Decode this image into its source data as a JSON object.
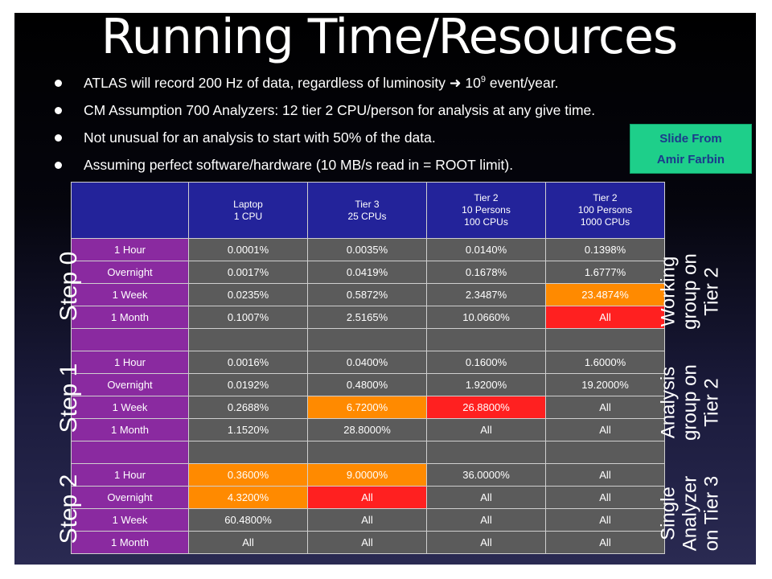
{
  "title": "Running Time/Resources",
  "bullets": [
    {
      "pre": "ATLAS will record 200 Hz of data, regardless of luminosity ",
      "arrow": "➜",
      "base": " 10",
      "sup": "9",
      "post": " event/year."
    },
    {
      "text": "CM Assumption 700 Analyzers: 12 tier 2 CPU/person for analysis at any give time."
    },
    {
      "text": "Not unusual for an analysis to start with 50% of the data."
    },
    {
      "text": "Assuming perfect software/hardware (10 MB/s read in = ROOT limit)."
    }
  ],
  "note": {
    "line1": "Slide From",
    "line2": "Amir Farbin"
  },
  "table": {
    "headers": [
      {
        "lines": [
          "Laptop",
          "1 CPU"
        ]
      },
      {
        "lines": [
          "Tier 3",
          "25 CPUs"
        ]
      },
      {
        "lines": [
          "Tier 2",
          "10 Persons",
          "100 CPUs"
        ]
      },
      {
        "lines": [
          "Tier 2",
          "100 Persons",
          "1000 CPUs"
        ]
      }
    ],
    "rows": [
      [
        "1 Hour",
        "0.0001%",
        "0.0035%",
        "0.0140%",
        "0.1398%"
      ],
      [
        "Overnight",
        "0.0017%",
        "0.0419%",
        "0.1678%",
        "1.6777%"
      ],
      [
        "1 Week",
        "0.0235%",
        "0.5872%",
        "2.3487%",
        "23.4874%"
      ],
      [
        "1 Month",
        "0.1007%",
        "2.5165%",
        "10.0660%",
        "All"
      ],
      [
        "",
        "",
        "",
        "",
        ""
      ],
      [
        "1 Hour",
        "0.0016%",
        "0.0400%",
        "0.1600%",
        "1.6000%"
      ],
      [
        "Overnight",
        "0.0192%",
        "0.4800%",
        "1.9200%",
        "19.2000%"
      ],
      [
        "1 Week",
        "0.2688%",
        "6.7200%",
        "26.8800%",
        "All"
      ],
      [
        "1 Month",
        "1.1520%",
        "28.8000%",
        "All",
        "All"
      ],
      [
        "",
        "",
        "",
        "",
        ""
      ],
      [
        "1 Hour",
        "0.3600%",
        "9.0000%",
        "36.0000%",
        "All"
      ],
      [
        "Overnight",
        "4.3200%",
        "All",
        "All",
        "All"
      ],
      [
        "1 Week",
        "60.4800%",
        "All",
        "All",
        "All"
      ],
      [
        "1 Month",
        "All",
        "All",
        "All",
        "All"
      ]
    ],
    "highlights": {
      "orange": [
        "2-4",
        "7-2",
        "10-1",
        "10-2",
        "11-1"
      ],
      "red": [
        "3-4",
        "7-3",
        "11-2"
      ]
    }
  },
  "steps": [
    "Step 0",
    "Step 1",
    "Step 2"
  ],
  "groups": [
    [
      "Working",
      "group on",
      "Tier 2"
    ],
    [
      "Analysis",
      "group on",
      "Tier 2"
    ],
    [
      "Single",
      "Analyzer",
      "on Tier 3"
    ]
  ],
  "colors": {
    "header": "#23239a",
    "row_label": "#8a2aa0",
    "cell": "#5b5b5b",
    "orange": "#ff8a00",
    "red": "#ff2020",
    "note_bg": "#1ecf8a",
    "note_text": "#1b3a8c"
  }
}
